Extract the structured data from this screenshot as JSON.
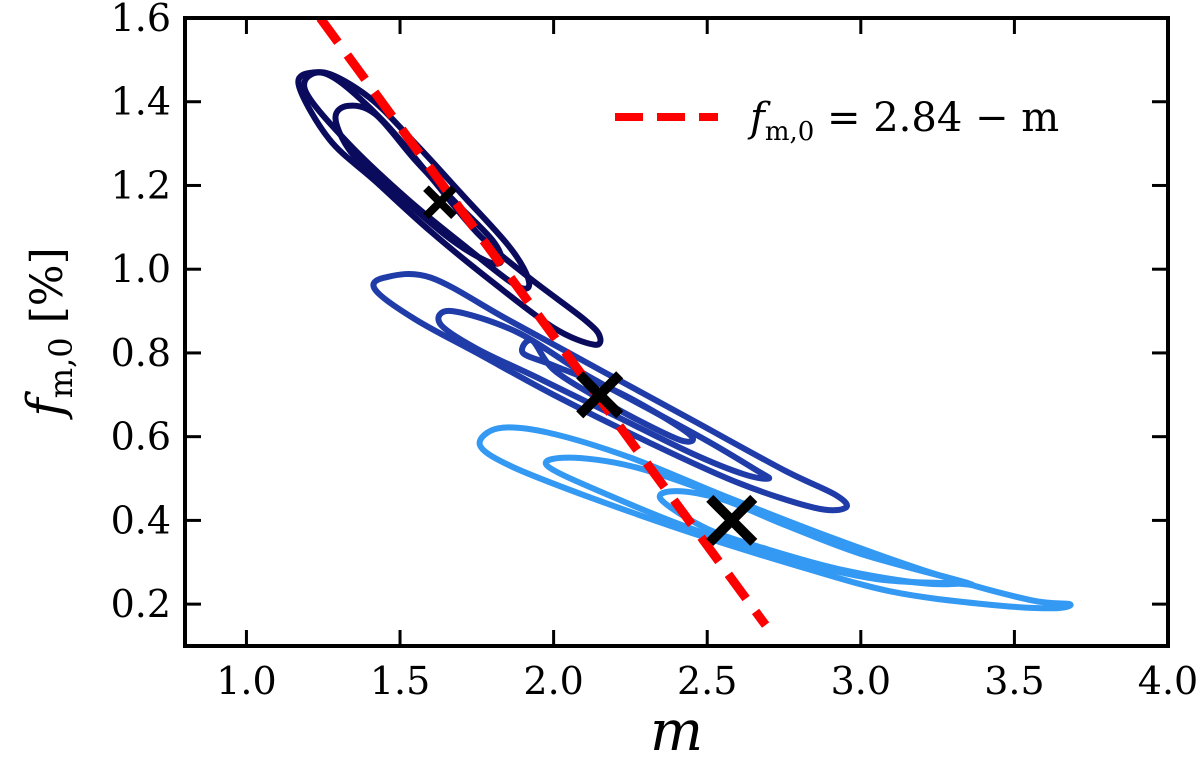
{
  "chart_data": {
    "type": "contour",
    "xlabel": "m",
    "ylabel": {
      "symbol": "f",
      "subscript": "m,0",
      "unit": "[%]"
    },
    "xlim": [
      0.8,
      4.0
    ],
    "ylim": [
      0.1,
      1.6
    ],
    "xticks": [
      "1.0",
      "1.5",
      "2.0",
      "2.5",
      "3.0",
      "3.5",
      "4.0"
    ],
    "yticks": [
      "0.2",
      "0.4",
      "0.6",
      "0.8",
      "1.0",
      "1.2",
      "1.4",
      "1.6"
    ],
    "grid": false,
    "legend": {
      "placement": "top-right",
      "entries": [
        {
          "label_lhs": "f",
          "label_sub": "m,0",
          "label_rhs": " = 2.84 − m",
          "style": "dashed",
          "color": "#ff0000"
        }
      ]
    },
    "line": {
      "label": "f_m,0 = 2.84 - m",
      "intercept": 2.84,
      "slope": -1,
      "x_range": [
        1.24,
        2.69
      ],
      "color": "#ff0000"
    },
    "series": [
      {
        "color": "#0b0b5e",
        "best_fit": {
          "x": 1.63,
          "y": 1.16
        },
        "contours": [
          [
            [
              1.34,
              1.28
            ],
            [
              1.29,
              1.36
            ],
            [
              1.33,
              1.39
            ],
            [
              1.42,
              1.37
            ],
            [
              1.55,
              1.26
            ],
            [
              1.68,
              1.16
            ],
            [
              1.8,
              1.07
            ],
            [
              1.83,
              1.02
            ],
            [
              1.78,
              1.02
            ],
            [
              1.65,
              1.08
            ],
            [
              1.46,
              1.2
            ]
          ],
          [
            [
              1.19,
              1.43
            ],
            [
              1.25,
              1.47
            ],
            [
              1.4,
              1.41
            ],
            [
              1.55,
              1.3
            ],
            [
              1.7,
              1.18
            ],
            [
              1.86,
              1.05
            ],
            [
              1.92,
              0.97
            ],
            [
              1.88,
              0.96
            ],
            [
              1.72,
              1.05
            ],
            [
              1.52,
              1.17
            ],
            [
              1.32,
              1.31
            ]
          ],
          [
            [
              1.17,
              1.44
            ],
            [
              1.22,
              1.47
            ],
            [
              1.3,
              1.45
            ],
            [
              1.45,
              1.35
            ],
            [
              1.6,
              1.22
            ],
            [
              1.76,
              1.08
            ],
            [
              1.92,
              0.98
            ],
            [
              2.1,
              0.88
            ],
            [
              2.15,
              0.84
            ],
            [
              2.13,
              0.82
            ],
            [
              2.0,
              0.86
            ],
            [
              1.8,
              0.97
            ],
            [
              1.6,
              1.09
            ],
            [
              1.42,
              1.21
            ],
            [
              1.27,
              1.31
            ]
          ]
        ]
      },
      {
        "color": "#1f3ca8",
        "best_fit": {
          "x": 2.15,
          "y": 0.7
        },
        "contours": [
          [
            [
              1.93,
              0.83
            ],
            [
              1.9,
              0.8
            ],
            [
              2.0,
              0.77
            ],
            [
              2.2,
              0.71
            ],
            [
              2.35,
              0.65
            ],
            [
              2.45,
              0.6
            ],
            [
              2.42,
              0.59
            ],
            [
              2.3,
              0.63
            ],
            [
              2.15,
              0.69
            ],
            [
              2.0,
              0.76
            ]
          ],
          [
            [
              1.67,
              0.9
            ],
            [
              1.63,
              0.87
            ],
            [
              1.75,
              0.81
            ],
            [
              1.95,
              0.74
            ],
            [
              2.2,
              0.65
            ],
            [
              2.45,
              0.56
            ],
            [
              2.62,
              0.51
            ],
            [
              2.7,
              0.5
            ],
            [
              2.66,
              0.52
            ],
            [
              2.5,
              0.59
            ],
            [
              2.3,
              0.67
            ],
            [
              2.1,
              0.75
            ],
            [
              1.88,
              0.85
            ]
          ],
          [
            [
              1.45,
              0.98
            ],
            [
              1.42,
              0.95
            ],
            [
              1.55,
              0.88
            ],
            [
              1.75,
              0.8
            ],
            [
              2.0,
              0.7
            ],
            [
              2.3,
              0.59
            ],
            [
              2.6,
              0.49
            ],
            [
              2.85,
              0.43
            ],
            [
              2.95,
              0.43
            ],
            [
              2.92,
              0.46
            ],
            [
              2.75,
              0.52
            ],
            [
              2.45,
              0.64
            ],
            [
              2.15,
              0.76
            ],
            [
              1.85,
              0.88
            ],
            [
              1.6,
              0.98
            ]
          ]
        ]
      },
      {
        "color": "#3399f3",
        "best_fit": {
          "x": 2.58,
          "y": 0.4
        },
        "contours": [
          [
            [
              2.35,
              0.45
            ],
            [
              2.4,
              0.47
            ],
            [
              2.55,
              0.45
            ],
            [
              2.75,
              0.39
            ],
            [
              3.0,
              0.32
            ],
            [
              3.3,
              0.26
            ],
            [
              3.33,
              0.25
            ],
            [
              3.2,
              0.25
            ],
            [
              2.95,
              0.28
            ],
            [
              2.7,
              0.33
            ],
            [
              2.5,
              0.38
            ]
          ],
          [
            [
              1.98,
              0.53
            ],
            [
              2.05,
              0.55
            ],
            [
              2.25,
              0.53
            ],
            [
              2.5,
              0.47
            ],
            [
              2.8,
              0.38
            ],
            [
              3.1,
              0.3
            ],
            [
              3.35,
              0.25
            ],
            [
              3.3,
              0.25
            ],
            [
              3.05,
              0.26
            ],
            [
              2.75,
              0.31
            ],
            [
              2.45,
              0.38
            ],
            [
              2.18,
              0.46
            ]
          ],
          [
            [
              1.76,
              0.58
            ],
            [
              1.82,
              0.62
            ],
            [
              1.98,
              0.61
            ],
            [
              2.25,
              0.55
            ],
            [
              2.55,
              0.46
            ],
            [
              2.9,
              0.36
            ],
            [
              3.25,
              0.27
            ],
            [
              3.55,
              0.21
            ],
            [
              3.68,
              0.2
            ],
            [
              3.62,
              0.19
            ],
            [
              3.4,
              0.2
            ],
            [
              3.1,
              0.23
            ],
            [
              2.8,
              0.29
            ],
            [
              2.45,
              0.37
            ],
            [
              2.1,
              0.46
            ],
            [
              1.86,
              0.53
            ]
          ]
        ]
      }
    ]
  }
}
